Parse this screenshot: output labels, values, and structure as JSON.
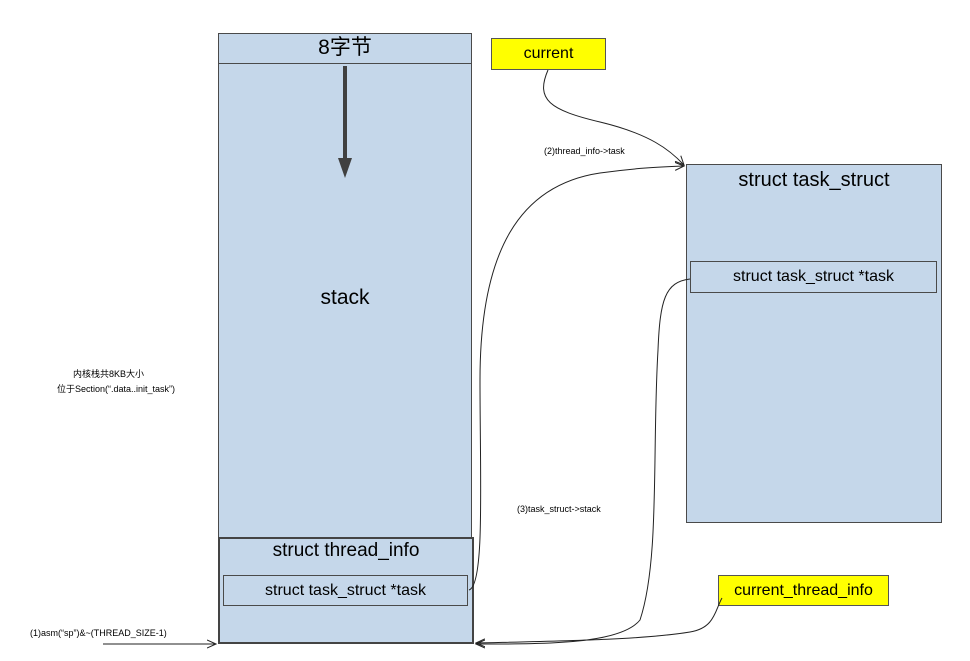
{
  "stack": {
    "top_label": "8字节",
    "label": "stack"
  },
  "thread_info": {
    "title": "struct thread_info",
    "field": "struct task_struct *task"
  },
  "task_struct": {
    "title": "struct task_struct",
    "field": "struct task_struct *task"
  },
  "current": {
    "label": "current"
  },
  "current_thread_info": {
    "label": "current_thread_info"
  },
  "notes": {
    "line1": "内核栈共8KB大小",
    "line2": "位于Section(“.data..init_task”)"
  },
  "edges": {
    "thread_info_to_task": "(2)thread_info->task",
    "task_struct_to_stack": "(3)task_struct->stack",
    "asm_sp": "(1)asm(“sp”)&~(THREAD_SIZE-1)"
  },
  "colors": {
    "box_fill": "#c5d7ea",
    "highlight": "#ffff00",
    "border": "#4a4a4a"
  }
}
